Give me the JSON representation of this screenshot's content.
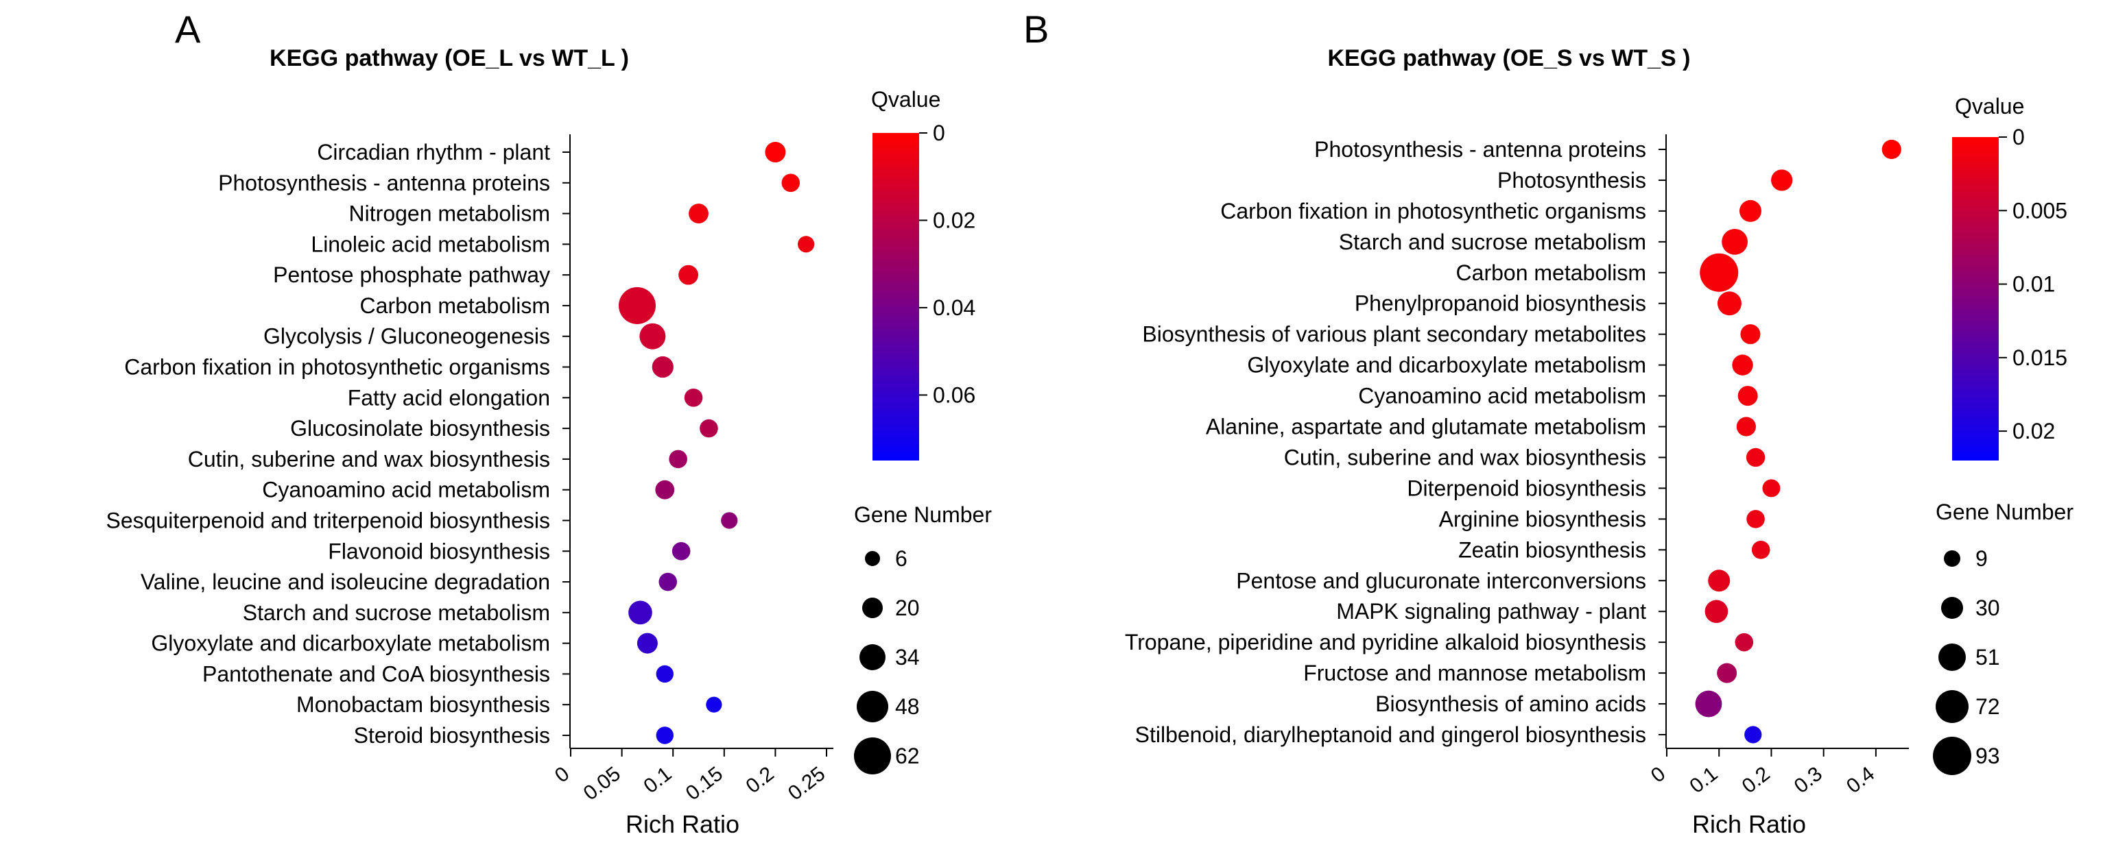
{
  "chart_data": [
    {
      "type": "scatter",
      "panel_letter": "A",
      "title": "KEGG pathway (OE_L vs WT_L )",
      "xlabel": "Rich Ratio",
      "xlim": [
        0,
        0.25
      ],
      "xticks": [
        "0",
        "0.05",
        "0.1",
        "0.15",
        "0.2",
        "0.25"
      ],
      "color_legend": {
        "title": "Qvalue",
        "min": 0,
        "max": 0.075,
        "ticks": [
          "0",
          "0.02",
          "0.04",
          "0.06"
        ],
        "tick_values": [
          0,
          0.02,
          0.04,
          0.06
        ]
      },
      "size_legend": {
        "title": "Gene Number",
        "values": [
          6,
          20,
          34,
          48,
          62
        ]
      },
      "points": [
        {
          "pathway": "Circadian rhythm - plant",
          "rich_ratio": 0.2,
          "qvalue": 0.001,
          "gene_number": 20
        },
        {
          "pathway": "Photosynthesis - antenna proteins",
          "rich_ratio": 0.215,
          "qvalue": 0.002,
          "gene_number": 14
        },
        {
          "pathway": "Nitrogen metabolism",
          "rich_ratio": 0.125,
          "qvalue": 0.004,
          "gene_number": 18
        },
        {
          "pathway": "Linoleic acid metabolism",
          "rich_ratio": 0.23,
          "qvalue": 0.005,
          "gene_number": 10
        },
        {
          "pathway": "Pentose phosphate pathway",
          "rich_ratio": 0.115,
          "qvalue": 0.007,
          "gene_number": 18
        },
        {
          "pathway": "Carbon metabolism",
          "rich_ratio": 0.065,
          "qvalue": 0.012,
          "gene_number": 62
        },
        {
          "pathway": "Glycolysis / Gluconeogenesis",
          "rich_ratio": 0.08,
          "qvalue": 0.014,
          "gene_number": 34
        },
        {
          "pathway": "Carbon fixation in photosynthetic organisms",
          "rich_ratio": 0.09,
          "qvalue": 0.018,
          "gene_number": 22
        },
        {
          "pathway": "Fatty acid elongation",
          "rich_ratio": 0.12,
          "qvalue": 0.02,
          "gene_number": 14
        },
        {
          "pathway": "Glucosinolate biosynthesis",
          "rich_ratio": 0.135,
          "qvalue": 0.022,
          "gene_number": 14
        },
        {
          "pathway": "Cutin, suberine and wax biosynthesis",
          "rich_ratio": 0.105,
          "qvalue": 0.028,
          "gene_number": 14
        },
        {
          "pathway": "Cyanoamino acid metabolism",
          "rich_ratio": 0.092,
          "qvalue": 0.03,
          "gene_number": 16
        },
        {
          "pathway": "Sesquiterpenoid and triterpenoid biosynthesis",
          "rich_ratio": 0.155,
          "qvalue": 0.034,
          "gene_number": 10
        },
        {
          "pathway": "Flavonoid biosynthesis",
          "rich_ratio": 0.108,
          "qvalue": 0.041,
          "gene_number": 14
        },
        {
          "pathway": "Valine, leucine and isoleucine degradation",
          "rich_ratio": 0.095,
          "qvalue": 0.043,
          "gene_number": 14
        },
        {
          "pathway": "Starch and sucrose metabolism",
          "rich_ratio": 0.068,
          "qvalue": 0.058,
          "gene_number": 28
        },
        {
          "pathway": "Glyoxylate and dicarboxylate metabolism",
          "rich_ratio": 0.075,
          "qvalue": 0.06,
          "gene_number": 20
        },
        {
          "pathway": "Pantothenate and CoA biosynthesis",
          "rich_ratio": 0.092,
          "qvalue": 0.067,
          "gene_number": 12
        },
        {
          "pathway": "Monobactam biosynthesis",
          "rich_ratio": 0.14,
          "qvalue": 0.07,
          "gene_number": 8
        },
        {
          "pathway": "Steroid biosynthesis",
          "rich_ratio": 0.092,
          "qvalue": 0.069,
          "gene_number": 12
        }
      ]
    },
    {
      "type": "scatter",
      "panel_letter": "B",
      "title": "KEGG pathway (OE_S vs WT_S )",
      "xlabel": "Rich Ratio",
      "xlim": [
        0,
        0.45
      ],
      "xticks": [
        "0",
        "0.1",
        "0.2",
        "0.3",
        "0.4"
      ],
      "color_legend": {
        "title": "Qvalue",
        "min": 0,
        "max": 0.022,
        "ticks": [
          "0",
          "0.005",
          "0.01",
          "0.015",
          "0.02"
        ],
        "tick_values": [
          0,
          0.005,
          0.01,
          0.015,
          0.02
        ]
      },
      "size_legend": {
        "title": "Gene Number",
        "values": [
          9,
          30,
          51,
          72,
          93
        ]
      },
      "points": [
        {
          "pathway": "Photosynthesis - antenna proteins",
          "rich_ratio": 0.43,
          "qvalue": 0.0,
          "gene_number": 20
        },
        {
          "pathway": "Photosynthesis",
          "rich_ratio": 0.22,
          "qvalue": 0.0004,
          "gene_number": 28
        },
        {
          "pathway": "Carbon fixation in photosynthetic organisms",
          "rich_ratio": 0.16,
          "qvalue": 0.0005,
          "gene_number": 30
        },
        {
          "pathway": "Starch and sucrose metabolism",
          "rich_ratio": 0.13,
          "qvalue": 0.0006,
          "gene_number": 45
        },
        {
          "pathway": "Carbon metabolism",
          "rich_ratio": 0.1,
          "qvalue": 0.0006,
          "gene_number": 93
        },
        {
          "pathway": "Phenylpropanoid biosynthesis",
          "rich_ratio": 0.12,
          "qvalue": 0.0008,
          "gene_number": 38
        },
        {
          "pathway": "Biosynthesis of various plant secondary metabolites",
          "rich_ratio": 0.16,
          "qvalue": 0.0008,
          "gene_number": 22
        },
        {
          "pathway": "Glyoxylate and dicarboxylate metabolism",
          "rich_ratio": 0.145,
          "qvalue": 0.0009,
          "gene_number": 26
        },
        {
          "pathway": "Cyanoamino acid metabolism",
          "rich_ratio": 0.155,
          "qvalue": 0.001,
          "gene_number": 22
        },
        {
          "pathway": "Alanine, aspartate and glutamate metabolism",
          "rich_ratio": 0.152,
          "qvalue": 0.0012,
          "gene_number": 20
        },
        {
          "pathway": "Cutin, suberine and wax biosynthesis",
          "rich_ratio": 0.17,
          "qvalue": 0.0014,
          "gene_number": 18
        },
        {
          "pathway": "Diterpenoid biosynthesis",
          "rich_ratio": 0.2,
          "qvalue": 0.0015,
          "gene_number": 14
        },
        {
          "pathway": "Arginine biosynthesis",
          "rich_ratio": 0.17,
          "qvalue": 0.0016,
          "gene_number": 16
        },
        {
          "pathway": "Zeatin biosynthesis",
          "rich_ratio": 0.18,
          "qvalue": 0.0018,
          "gene_number": 16
        },
        {
          "pathway": "Pentose and glucuronate interconversions",
          "rich_ratio": 0.1,
          "qvalue": 0.0025,
          "gene_number": 30
        },
        {
          "pathway": "MAPK signaling pathway - plant",
          "rich_ratio": 0.095,
          "qvalue": 0.003,
          "gene_number": 34
        },
        {
          "pathway": "Tropane, piperidine and pyridine alkaloid biosynthesis",
          "rich_ratio": 0.148,
          "qvalue": 0.0045,
          "gene_number": 16
        },
        {
          "pathway": "Fructose and mannose metabolism",
          "rich_ratio": 0.115,
          "qvalue": 0.0075,
          "gene_number": 22
        },
        {
          "pathway": "Biosynthesis of amino acids",
          "rich_ratio": 0.08,
          "qvalue": 0.0105,
          "gene_number": 48
        },
        {
          "pathway": "Stilbenoid, diarylheptanoid and gingerol biosynthesis",
          "rich_ratio": 0.165,
          "qvalue": 0.02,
          "gene_number": 12
        }
      ]
    }
  ]
}
